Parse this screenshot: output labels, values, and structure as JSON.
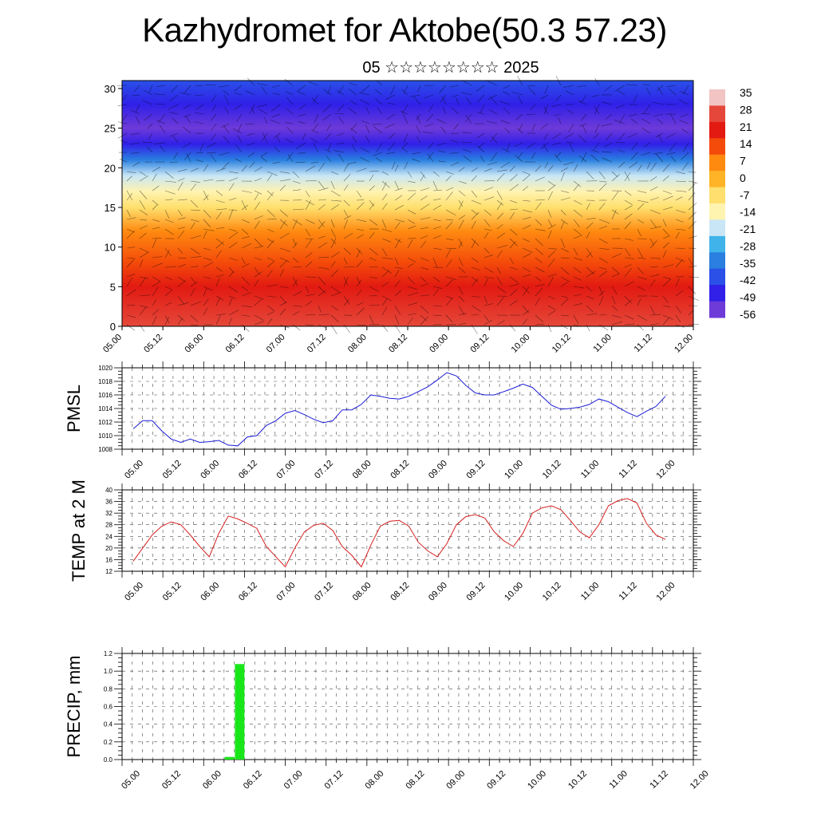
{
  "title": "Kazhydromet for Aktobe(50.3 57.23)",
  "subtitle": "05 ☆☆☆☆☆☆☆☆ 2025",
  "chart_data": [
    {
      "type": "heatmap",
      "description_free": true,
      "x_ticks": [
        "05.00",
        "05.12",
        "06.00",
        "06.12",
        "07.00",
        "07.12",
        "08.00",
        "08.12",
        "09.00",
        "09.12",
        "10.00",
        "10.12",
        "11.00",
        "11.12",
        "12.00"
      ],
      "y_ticks": [
        "0",
        "5",
        "10",
        "15",
        "20",
        "25",
        "30"
      ],
      "ylim": [
        0,
        31
      ],
      "colorbar_labels": [
        "35",
        "28",
        "21",
        "14",
        "7",
        "0",
        "-7",
        "-14",
        "-21",
        "-28",
        "-35",
        "-42",
        "-49",
        "-56"
      ],
      "colorbar_colors": [
        "#f2c4c4",
        "#e5483a",
        "#e21a12",
        "#f44a0a",
        "#ff8a10",
        "#ffb326",
        "#ffe06e",
        "#fff3b0",
        "#c8e6f5",
        "#3fb3ea",
        "#2a7fe0",
        "#2a50e8",
        "#3020e8",
        "#6e3ad8"
      ],
      "level_profile": [
        {
          "z": 0,
          "value": 26
        },
        {
          "z": 5,
          "value": 24
        },
        {
          "z": 8,
          "value": 16
        },
        {
          "z": 12,
          "value": 4
        },
        {
          "z": 15,
          "value": -4
        },
        {
          "z": 17,
          "value": -12
        },
        {
          "z": 19,
          "value": -24
        },
        {
          "z": 21,
          "value": -36
        },
        {
          "z": 23,
          "value": -50
        },
        {
          "z": 25,
          "value": -55
        },
        {
          "z": 28,
          "value": -46
        },
        {
          "z": 31,
          "value": -42
        }
      ],
      "grid": true
    },
    {
      "type": "line",
      "ylabel": "PMSL",
      "ylim": [
        1008,
        1020
      ],
      "y_ticks": [
        "1008",
        "1010",
        "1012",
        "1014",
        "1016",
        "1018",
        "1020"
      ],
      "x_ticks": [
        "05.00",
        "05.12",
        "06.00",
        "06.12",
        "07.00",
        "07.12",
        "08.00",
        "08.12",
        "09.00",
        "09.12",
        "10.00",
        "10.12",
        "11.00",
        "11.12",
        "12.00"
      ],
      "color": "#1c1cd6",
      "x_step_hours": 3,
      "values": [
        1011.0,
        1012.2,
        1012.2,
        1010.7,
        1009.5,
        1009.0,
        1009.5,
        1009.0,
        1009.1,
        1009.3,
        1008.6,
        1008.5,
        1009.8,
        1010.0,
        1011.5,
        1012.2,
        1013.3,
        1013.7,
        1013.1,
        1012.4,
        1011.9,
        1012.2,
        1013.8,
        1013.8,
        1014.6,
        1016.0,
        1015.8,
        1015.5,
        1015.4,
        1015.8,
        1016.5,
        1017.2,
        1018.2,
        1019.3,
        1018.8,
        1017.4,
        1016.3,
        1016.0,
        1016.0,
        1016.5,
        1017.0,
        1017.6,
        1017.1,
        1015.8,
        1014.5,
        1013.9,
        1014.0,
        1014.2,
        1014.6,
        1015.4,
        1015.0,
        1014.2,
        1013.4,
        1012.8,
        1013.6,
        1014.3,
        1015.8
      ]
    },
    {
      "type": "line",
      "ylabel": "TEMP at 2 M",
      "ylim": [
        12,
        40
      ],
      "y_ticks": [
        "12",
        "16",
        "20",
        "24",
        "28",
        "32",
        "36",
        "40"
      ],
      "x_ticks": [
        "05.00",
        "05.12",
        "06.00",
        "06.12",
        "07.00",
        "07.12",
        "08.00",
        "08.12",
        "09.00",
        "09.12",
        "10.00",
        "10.12",
        "11.00",
        "11.12",
        "12.00"
      ],
      "color": "#d62020",
      "x_step_hours": 3,
      "values": [
        15.5,
        20.0,
        24.5,
        27.5,
        29.0,
        28.0,
        24.5,
        20.5,
        17.0,
        25.0,
        31.0,
        30.0,
        28.5,
        26.8,
        20.5,
        17.0,
        13.5,
        20.0,
        25.5,
        27.8,
        28.5,
        26.0,
        20.5,
        17.5,
        13.5,
        21.0,
        27.5,
        29.2,
        29.5,
        27.5,
        22.0,
        19.0,
        17.0,
        21.5,
        28.0,
        30.8,
        31.5,
        30.3,
        25.5,
        22.5,
        20.5,
        25.0,
        32.0,
        33.8,
        34.5,
        33.2,
        29.5,
        25.5,
        23.5,
        28.0,
        34.5,
        36.3,
        37.0,
        35.5,
        28.5,
        24.5,
        23.0
      ]
    },
    {
      "type": "bar",
      "ylabel": "PRECIP, mm",
      "ylim": [
        0,
        1.2
      ],
      "y_ticks": [
        "0.0",
        "0.2",
        "0.4",
        "0.6",
        "0.8",
        "1.0",
        "1.2"
      ],
      "x_ticks": [
        "05.00",
        "05.12",
        "06.00",
        "06.12",
        "07.00",
        "07.12",
        "08.00",
        "08.12",
        "09.00",
        "09.12",
        "10.00",
        "10.12",
        "11.00",
        "11.12",
        "12.00"
      ],
      "color": "#19e619",
      "bars": [
        {
          "t_hours": 33,
          "value": 0.03
        },
        {
          "t_hours": 36,
          "value": 1.08
        }
      ]
    }
  ]
}
